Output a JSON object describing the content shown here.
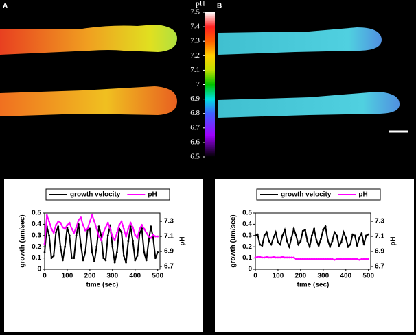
{
  "panels": [
    {
      "label": "A"
    },
    {
      "label": "B"
    }
  ],
  "colorbar": {
    "label": "pH",
    "lim": [
      6.5,
      7.5
    ],
    "ticks": [
      6.5,
      6.6,
      6.7,
      6.8,
      6.9,
      7,
      7.1,
      7.2,
      7.3,
      7.4,
      7.5
    ]
  },
  "chart_data": [
    {
      "type": "line",
      "xlabel": "time (sec)",
      "ylabel": "growth (um/sec)",
      "y2label": "pH",
      "legend": "top",
      "x": [
        0,
        10,
        20,
        30,
        40,
        50,
        60,
        70,
        80,
        90,
        100,
        110,
        120,
        130,
        140,
        150,
        160,
        170,
        180,
        190,
        200,
        210,
        220,
        230,
        240,
        250,
        260,
        270,
        280,
        290,
        300,
        310,
        320,
        330,
        340,
        350,
        360,
        370,
        380,
        390,
        400,
        410,
        420,
        430,
        440,
        450,
        460,
        470,
        480,
        490,
        500
      ],
      "xlim": [
        0,
        510
      ],
      "xticks": [
        0,
        100,
        200,
        300,
        400,
        500
      ],
      "ylim": [
        0,
        0.5
      ],
      "yticks": [
        0,
        0.1,
        0.2,
        0.3,
        0.4,
        0.5
      ],
      "y2lim": [
        6.664,
        7.41
      ],
      "y2ticks": [
        6.7,
        6.9,
        7.1,
        7.3
      ],
      "series": [
        {
          "name": "growth velocity",
          "color": "#000000",
          "values": [
            0.15,
            0.38,
            0.3,
            0.1,
            0.12,
            0.33,
            0.38,
            0.2,
            0.08,
            0.2,
            0.37,
            0.3,
            0.1,
            0.1,
            0.3,
            0.4,
            0.22,
            0.08,
            0.15,
            0.35,
            0.36,
            0.15,
            0.07,
            0.2,
            0.38,
            0.3,
            0.1,
            0.08,
            0.3,
            0.39,
            0.2,
            0.06,
            0.15,
            0.36,
            0.33,
            0.12,
            0.06,
            0.25,
            0.38,
            0.25,
            0.08,
            0.12,
            0.32,
            0.36,
            0.15,
            0.08,
            0.25,
            0.38,
            0.28,
            0.1,
            0.15
          ]
        },
        {
          "name": "pH",
          "color": "#ff00ff",
          "axis": "y2",
          "values": [
            7.0,
            7.38,
            7.3,
            7.2,
            7.15,
            7.25,
            7.3,
            7.28,
            7.22,
            7.2,
            7.25,
            7.28,
            7.2,
            7.15,
            7.22,
            7.32,
            7.35,
            7.25,
            7.18,
            7.2,
            7.3,
            7.38,
            7.3,
            7.2,
            7.1,
            7.05,
            7.15,
            7.22,
            7.28,
            7.2,
            7.1,
            7.05,
            7.15,
            7.25,
            7.3,
            7.2,
            7.1,
            7.2,
            7.28,
            7.22,
            7.12,
            7.08,
            7.2,
            7.25,
            7.2,
            7.15,
            7.1,
            7.08,
            7.12,
            7.1,
            7.1
          ]
        }
      ]
    },
    {
      "type": "line",
      "xlabel": "time (sec)",
      "ylabel": "growth (um/sec)",
      "y2label": "pH",
      "legend": "top",
      "x": [
        0,
        10,
        20,
        30,
        40,
        50,
        60,
        70,
        80,
        90,
        100,
        110,
        120,
        130,
        140,
        150,
        160,
        170,
        180,
        190,
        200,
        210,
        220,
        230,
        240,
        250,
        260,
        270,
        280,
        290,
        300,
        310,
        320,
        330,
        340,
        350,
        360,
        370,
        380,
        390,
        400,
        410,
        420,
        430,
        440,
        450,
        460,
        470,
        480,
        490,
        500
      ],
      "xlim": [
        0,
        510
      ],
      "xticks": [
        0,
        100,
        200,
        300,
        400,
        500
      ],
      "ylim": [
        0,
        0.5
      ],
      "yticks": [
        0,
        0.1,
        0.2,
        0.3,
        0.4,
        0.5
      ],
      "y2lim": [
        6.664,
        7.41
      ],
      "y2ticks": [
        6.7,
        6.9,
        7.1,
        7.3
      ],
      "series": [
        {
          "name": "growth velocity",
          "color": "#000000",
          "values": [
            0.3,
            0.31,
            0.22,
            0.21,
            0.3,
            0.33,
            0.25,
            0.22,
            0.28,
            0.33,
            0.24,
            0.22,
            0.3,
            0.35,
            0.25,
            0.2,
            0.28,
            0.36,
            0.3,
            0.22,
            0.25,
            0.34,
            0.35,
            0.25,
            0.2,
            0.3,
            0.36,
            0.26,
            0.21,
            0.27,
            0.35,
            0.38,
            0.26,
            0.2,
            0.25,
            0.33,
            0.3,
            0.21,
            0.24,
            0.33,
            0.28,
            0.2,
            0.22,
            0.31,
            0.3,
            0.21,
            0.28,
            0.32,
            0.22,
            0.3,
            0.31
          ]
        },
        {
          "name": "pH",
          "color": "#ff00ff",
          "axis": "y2",
          "values": [
            6.82,
            6.83,
            6.83,
            6.82,
            6.82,
            6.83,
            6.82,
            6.82,
            6.83,
            6.82,
            6.82,
            6.82,
            6.83,
            6.82,
            6.82,
            6.82,
            6.82,
            6.82,
            6.8,
            6.8,
            6.8,
            6.8,
            6.8,
            6.8,
            6.8,
            6.8,
            6.8,
            6.8,
            6.8,
            6.8,
            6.8,
            6.8,
            6.8,
            6.8,
            6.8,
            6.79,
            6.8,
            6.8,
            6.8,
            6.8,
            6.8,
            6.8,
            6.8,
            6.8,
            6.8,
            6.8,
            6.79,
            6.8,
            6.8,
            6.8,
            6.8
          ]
        }
      ]
    }
  ]
}
